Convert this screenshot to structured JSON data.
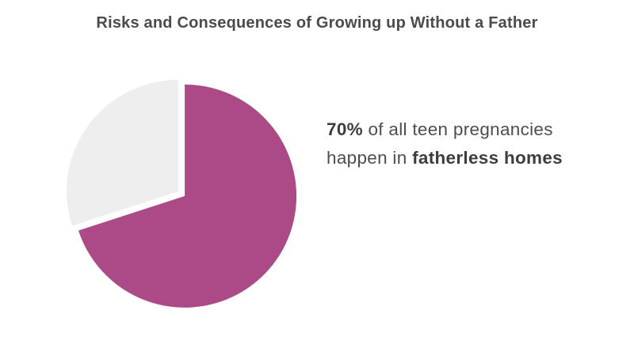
{
  "title": "Risks and Consequences of Growing up Without a Father",
  "callout": {
    "value": "70%",
    "line1_rest": " of all teen pregnancies",
    "line2_start": "happen in ",
    "line2_bold": "fatherless homes"
  },
  "chart_data": {
    "type": "pie",
    "title": "Risks and Consequences of Growing up Without a Father",
    "slices": [
      {
        "value": 70,
        "color": "#ab4a87",
        "exploded": true
      },
      {
        "value": 30,
        "color": "#eeeeee",
        "exploded": false
      }
    ],
    "legend": "none"
  }
}
